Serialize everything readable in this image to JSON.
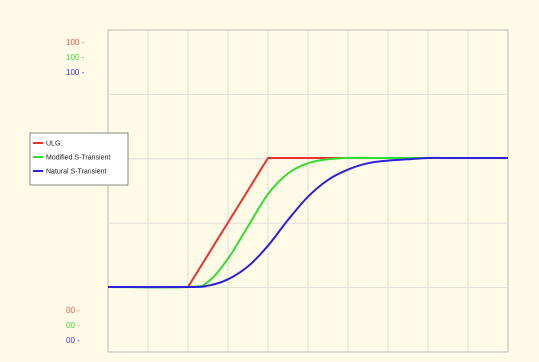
{
  "chart_data": {
    "type": "line",
    "title": "",
    "xlabel": "",
    "ylabel": "",
    "x_range": [
      0,
      10
    ],
    "y_range": [
      0,
      100
    ],
    "grid": true,
    "legend_placement": "left",
    "y_tick_labels_top": [
      {
        "text": "100 -",
        "color": "#ff4d4d"
      },
      {
        "text": "100 -",
        "color": "#33dd33"
      },
      {
        "text": "100 -",
        "color": "#3333ff"
      }
    ],
    "y_tick_labels_bottom": [
      {
        "text": "00 -",
        "color": "#ff4d4d"
      },
      {
        "text": "00 -",
        "color": "#33dd33"
      },
      {
        "text": "00 -",
        "color": "#3333ff"
      }
    ],
    "series": [
      {
        "name": "ULG",
        "color": "#e8332e",
        "x": [
          0,
          2,
          4,
          10
        ],
        "y": [
          0,
          0,
          100,
          100
        ]
      },
      {
        "name": "Modified S-Transient",
        "color": "#33dd33",
        "x": [
          0,
          2,
          2.5,
          3,
          3.5,
          4,
          4.5,
          5,
          5.5,
          6,
          7,
          8,
          10
        ],
        "y": [
          0,
          0,
          4,
          22,
          47,
          72,
          88,
          96,
          99,
          100,
          100,
          100,
          100
        ]
      },
      {
        "name": "Natural S-Transient",
        "color": "#2a22dd",
        "x": [
          0,
          2,
          2.5,
          3,
          3.5,
          4,
          4.5,
          5,
          5.5,
          6,
          6.5,
          7,
          7.5,
          8,
          8.5,
          9,
          10
        ],
        "y": [
          0,
          0,
          1,
          6,
          16,
          32,
          52,
          70,
          83,
          91,
          96,
          98,
          99,
          100,
          100,
          100,
          100
        ]
      }
    ]
  }
}
